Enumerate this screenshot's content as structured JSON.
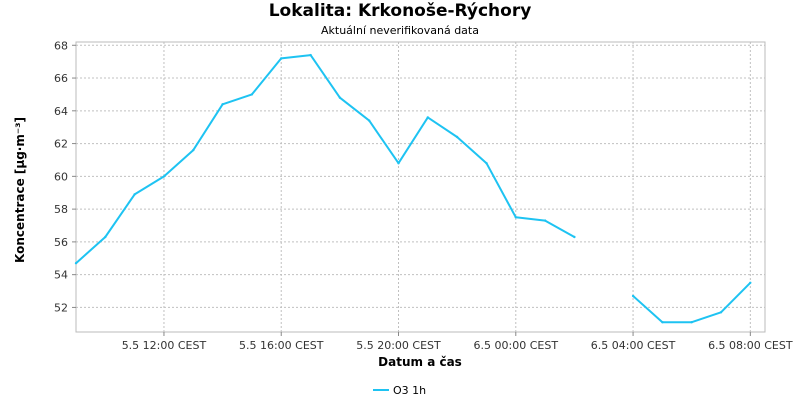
{
  "chart_data": {
    "type": "line",
    "title": "Lokalita: Krkonoše-Rýchory",
    "subtitle": "Aktuální neverifikovaná data",
    "xlabel": "Datum a čas",
    "ylabel": "Koncentrace [µg·m⁻³]",
    "ylim": [
      50.5,
      68.2
    ],
    "xlim": [
      "2024-05-05 09:00",
      "2024-05-06 08:30"
    ],
    "yticks": [
      52,
      54,
      56,
      58,
      60,
      62,
      64,
      66,
      68
    ],
    "xticks": [
      {
        "x": "2024-05-05 12:00",
        "label": "5.5 12:00 CEST"
      },
      {
        "x": "2024-05-05 16:00",
        "label": "5.5 16:00 CEST"
      },
      {
        "x": "2024-05-05 20:00",
        "label": "5.5 20:00 CEST"
      },
      {
        "x": "2024-05-06 00:00",
        "label": "6.5 00:00 CEST"
      },
      {
        "x": "2024-05-06 04:00",
        "label": "6.5 04:00 CEST"
      },
      {
        "x": "2024-05-06 08:00",
        "label": "6.5 08:00 CEST"
      }
    ],
    "grid": true,
    "legend_position": "bottom-center",
    "series": [
      {
        "name": "O3 1h",
        "color": "#1ec3f2",
        "points": [
          {
            "x": "2024-05-05 09:00",
            "y": 54.7
          },
          {
            "x": "2024-05-05 10:00",
            "y": 56.3
          },
          {
            "x": "2024-05-05 11:00",
            "y": 58.9
          },
          {
            "x": "2024-05-05 12:00",
            "y": 60.0
          },
          {
            "x": "2024-05-05 13:00",
            "y": 61.6
          },
          {
            "x": "2024-05-05 14:00",
            "y": 64.4
          },
          {
            "x": "2024-05-05 15:00",
            "y": 65.0
          },
          {
            "x": "2024-05-05 16:00",
            "y": 67.2
          },
          {
            "x": "2024-05-05 17:00",
            "y": 67.4
          },
          {
            "x": "2024-05-05 18:00",
            "y": 64.8
          },
          {
            "x": "2024-05-05 19:00",
            "y": 63.4
          },
          {
            "x": "2024-05-05 20:00",
            "y": 60.8
          },
          {
            "x": "2024-05-05 21:00",
            "y": 63.6
          },
          {
            "x": "2024-05-05 22:00",
            "y": 62.4
          },
          {
            "x": "2024-05-05 23:00",
            "y": 60.8
          },
          {
            "x": "2024-05-06 00:00",
            "y": 57.5
          },
          {
            "x": "2024-05-06 01:00",
            "y": 57.3
          },
          {
            "x": "2024-05-06 02:00",
            "y": 56.3
          },
          {
            "x": "2024-05-06 03:00",
            "y": null
          },
          {
            "x": "2024-05-06 04:00",
            "y": 52.7
          },
          {
            "x": "2024-05-06 05:00",
            "y": 51.1
          },
          {
            "x": "2024-05-06 06:00",
            "y": 51.1
          },
          {
            "x": "2024-05-06 07:00",
            "y": 51.7
          },
          {
            "x": "2024-05-06 08:00",
            "y": 53.5
          }
        ]
      }
    ]
  }
}
